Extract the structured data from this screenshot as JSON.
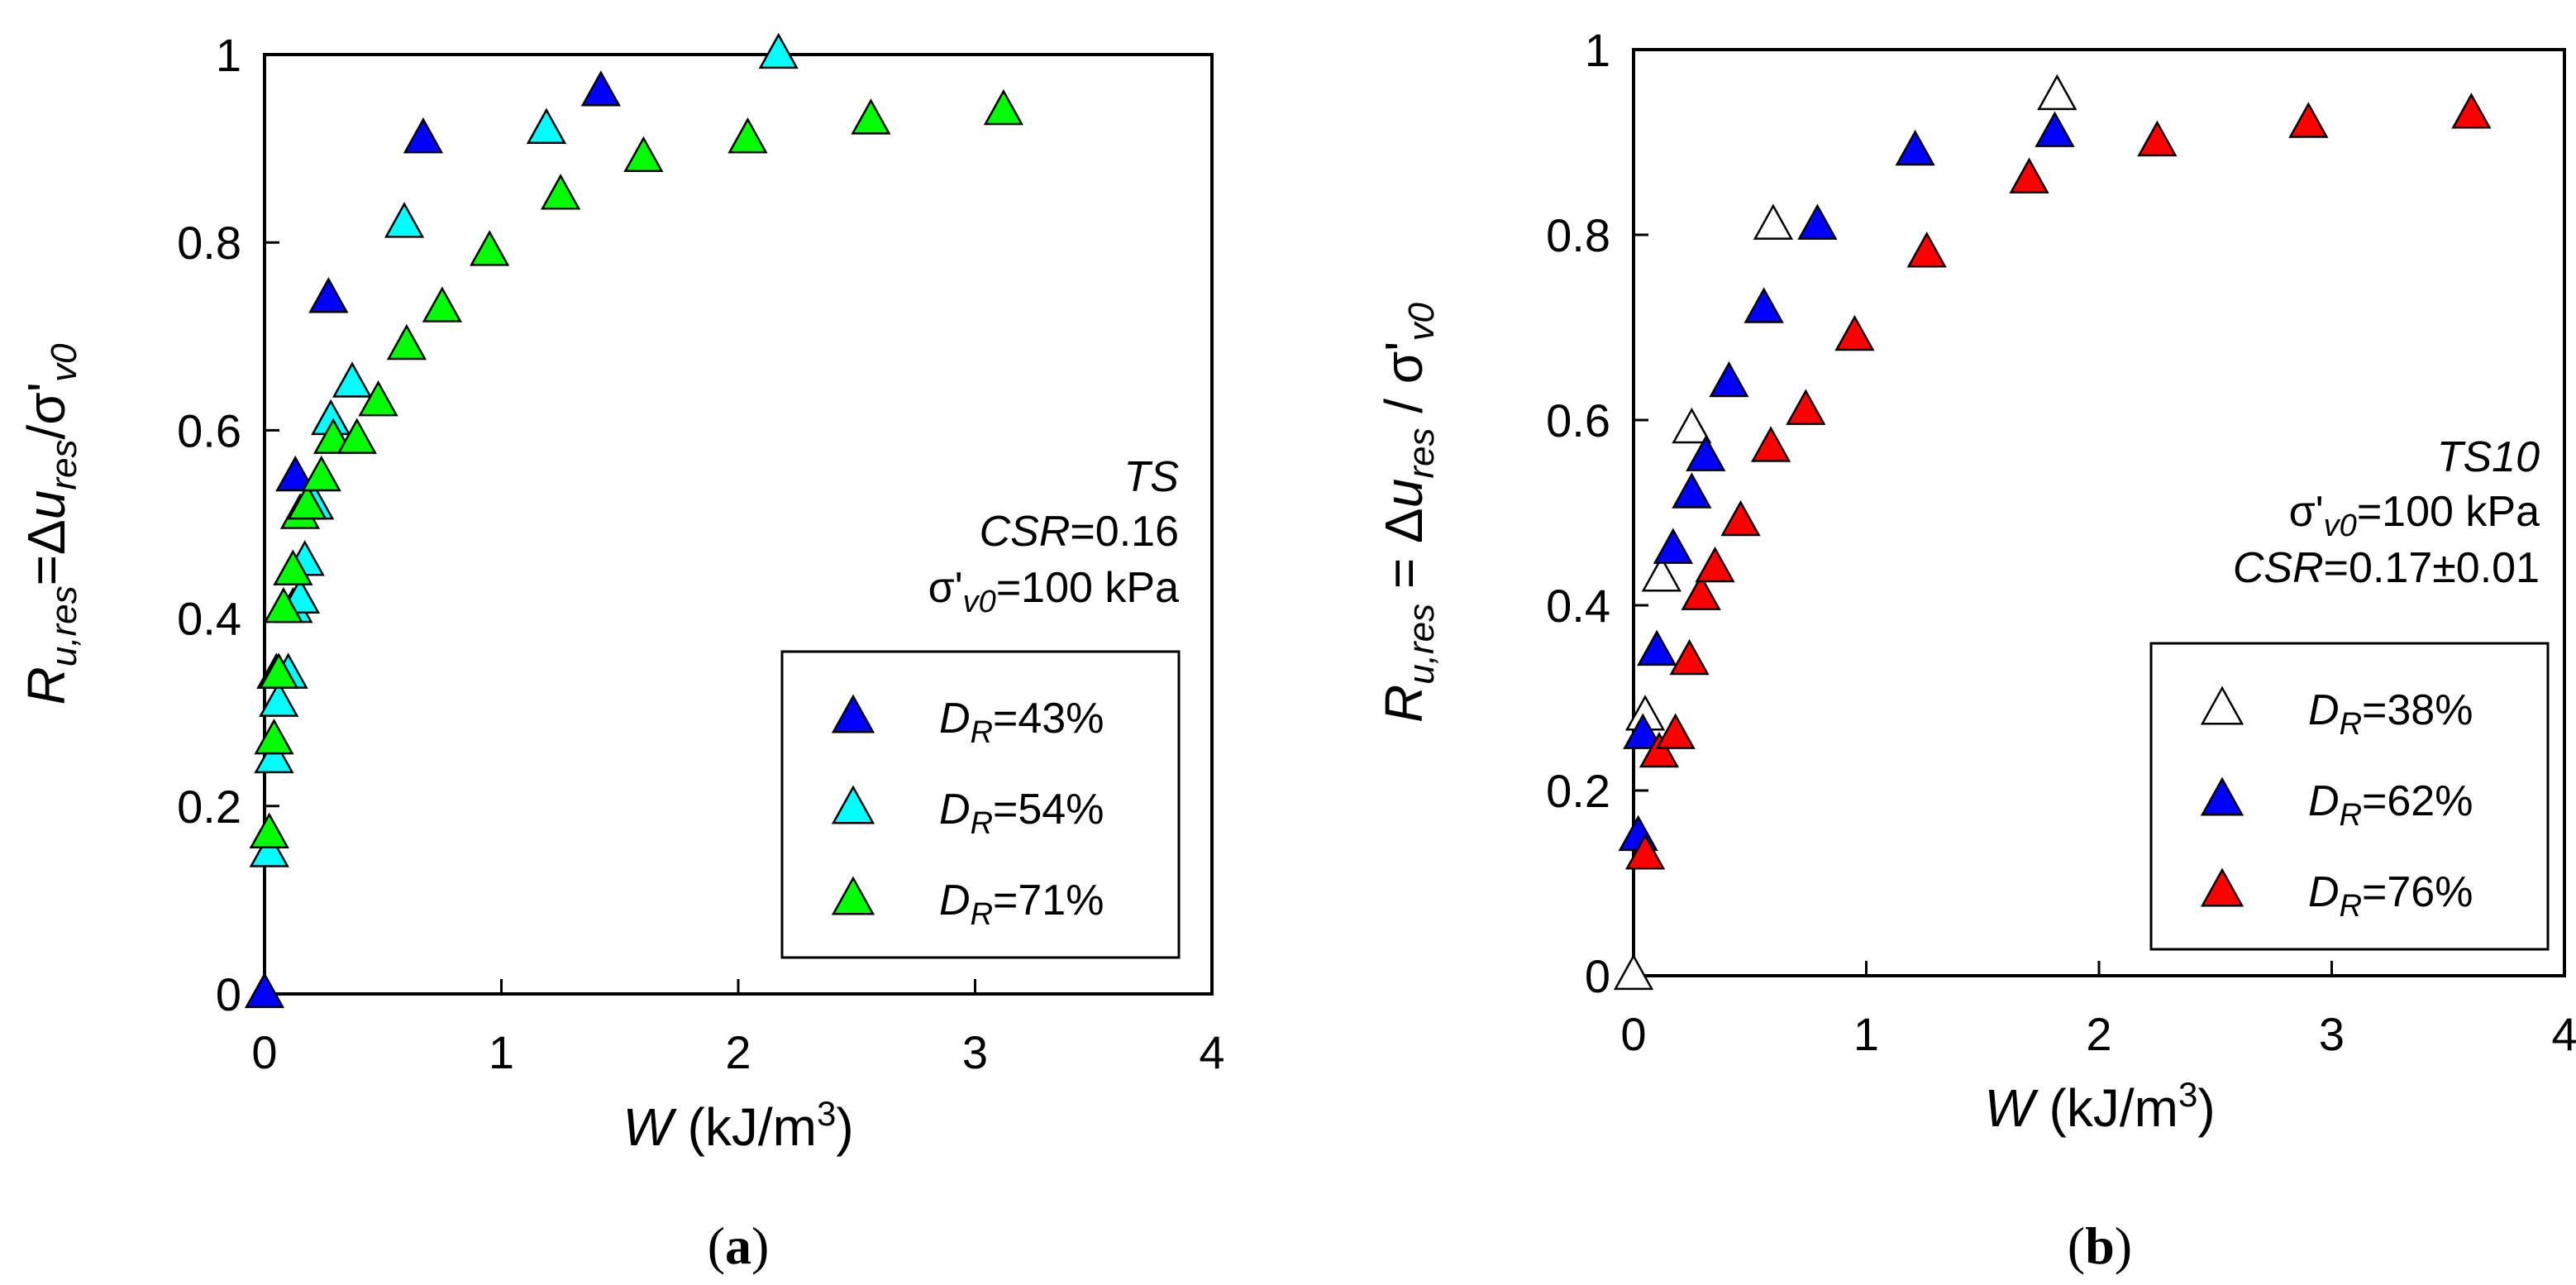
{
  "chart_data": [
    {
      "panel": "a",
      "type": "scatter",
      "caption_letter": "a",
      "xlabel": "W (kJ/m3)",
      "ylabel": "Ru,res=Δures/σ'v0",
      "xlim": [
        0,
        4
      ],
      "ylim": [
        0,
        1
      ],
      "xticks": [
        "0",
        "1",
        "2",
        "3",
        "4"
      ],
      "yticks": [
        "0",
        "0.2",
        "0.4",
        "0.6",
        "0.8",
        "1"
      ],
      "annotations": {
        "name": "TS",
        "csr_value": "=0.16",
        "stress_value": "=100 kPa"
      },
      "series": [
        {
          "name": "DR=43%",
          "legend_value": "=43%",
          "color": "#0000FF",
          "x": [
            0.0,
            0.05,
            0.13,
            0.27,
            0.67,
            1.42
          ],
          "y": [
            0.0,
            0.34,
            0.55,
            0.74,
            0.91,
            0.96
          ]
        },
        {
          "name": "DR=54%",
          "legend_value": "=54%",
          "color": "#00FFFF",
          "x": [
            0.02,
            0.04,
            0.06,
            0.1,
            0.12,
            0.15,
            0.17,
            0.21,
            0.28,
            0.37,
            0.59,
            1.19,
            2.17
          ],
          "y": [
            0.15,
            0.25,
            0.31,
            0.34,
            0.41,
            0.42,
            0.46,
            0.52,
            0.61,
            0.65,
            0.82,
            0.92,
            1.0
          ]
        },
        {
          "name": "DR=71%",
          "legend_value": "=71%",
          "color": "#00FF00",
          "x": [
            0.02,
            0.04,
            0.06,
            0.08,
            0.12,
            0.15,
            0.18,
            0.24,
            0.29,
            0.39,
            0.48,
            0.6,
            0.75,
            0.95,
            1.25,
            1.6,
            2.04,
            2.56,
            3.12
          ],
          "y": [
            0.17,
            0.27,
            0.34,
            0.41,
            0.45,
            0.51,
            0.52,
            0.55,
            0.59,
            0.59,
            0.63,
            0.69,
            0.73,
            0.79,
            0.85,
            0.89,
            0.91,
            0.93,
            0.94
          ]
        }
      ]
    },
    {
      "panel": "b",
      "type": "scatter",
      "caption_letter": "b",
      "xlabel": "W (kJ/m3)",
      "ylabel": "Ru,res = Δures / σ'v0",
      "xlim": [
        0,
        4
      ],
      "ylim": [
        0,
        1
      ],
      "xticks": [
        "0",
        "1",
        "2",
        "3",
        "4"
      ],
      "yticks": [
        "0",
        "0.2",
        "0.4",
        "0.6",
        "0.8",
        "1"
      ],
      "annotations": {
        "name": "TS10",
        "stress_value": "=100 kPa",
        "csr_value": "=0.17±0.01"
      },
      "series": [
        {
          "name": "DR=38%",
          "legend_value": "=38%",
          "color": "#FFFFFF",
          "x": [
            0.0,
            0.05,
            0.12,
            0.25,
            0.6,
            1.82
          ],
          "y": [
            0.0,
            0.28,
            0.43,
            0.59,
            0.81,
            0.95
          ]
        },
        {
          "name": "DR=62%",
          "legend_value": "=62%",
          "color": "#0000FF",
          "x": [
            0.02,
            0.04,
            0.1,
            0.17,
            0.25,
            0.31,
            0.41,
            0.56,
            0.79,
            1.21,
            1.81
          ],
          "y": [
            0.15,
            0.26,
            0.35,
            0.46,
            0.52,
            0.56,
            0.64,
            0.72,
            0.81,
            0.89,
            0.91
          ]
        },
        {
          "name": "DR=76%",
          "legend_value": "=76%",
          "color": "#FF0000",
          "x": [
            0.05,
            0.11,
            0.18,
            0.24,
            0.29,
            0.35,
            0.46,
            0.59,
            0.74,
            0.95,
            1.26,
            1.7,
            2.25,
            2.9,
            3.6
          ],
          "y": [
            0.13,
            0.24,
            0.26,
            0.34,
            0.41,
            0.44,
            0.49,
            0.57,
            0.61,
            0.69,
            0.78,
            0.86,
            0.9,
            0.92,
            0.93
          ]
        }
      ]
    }
  ]
}
